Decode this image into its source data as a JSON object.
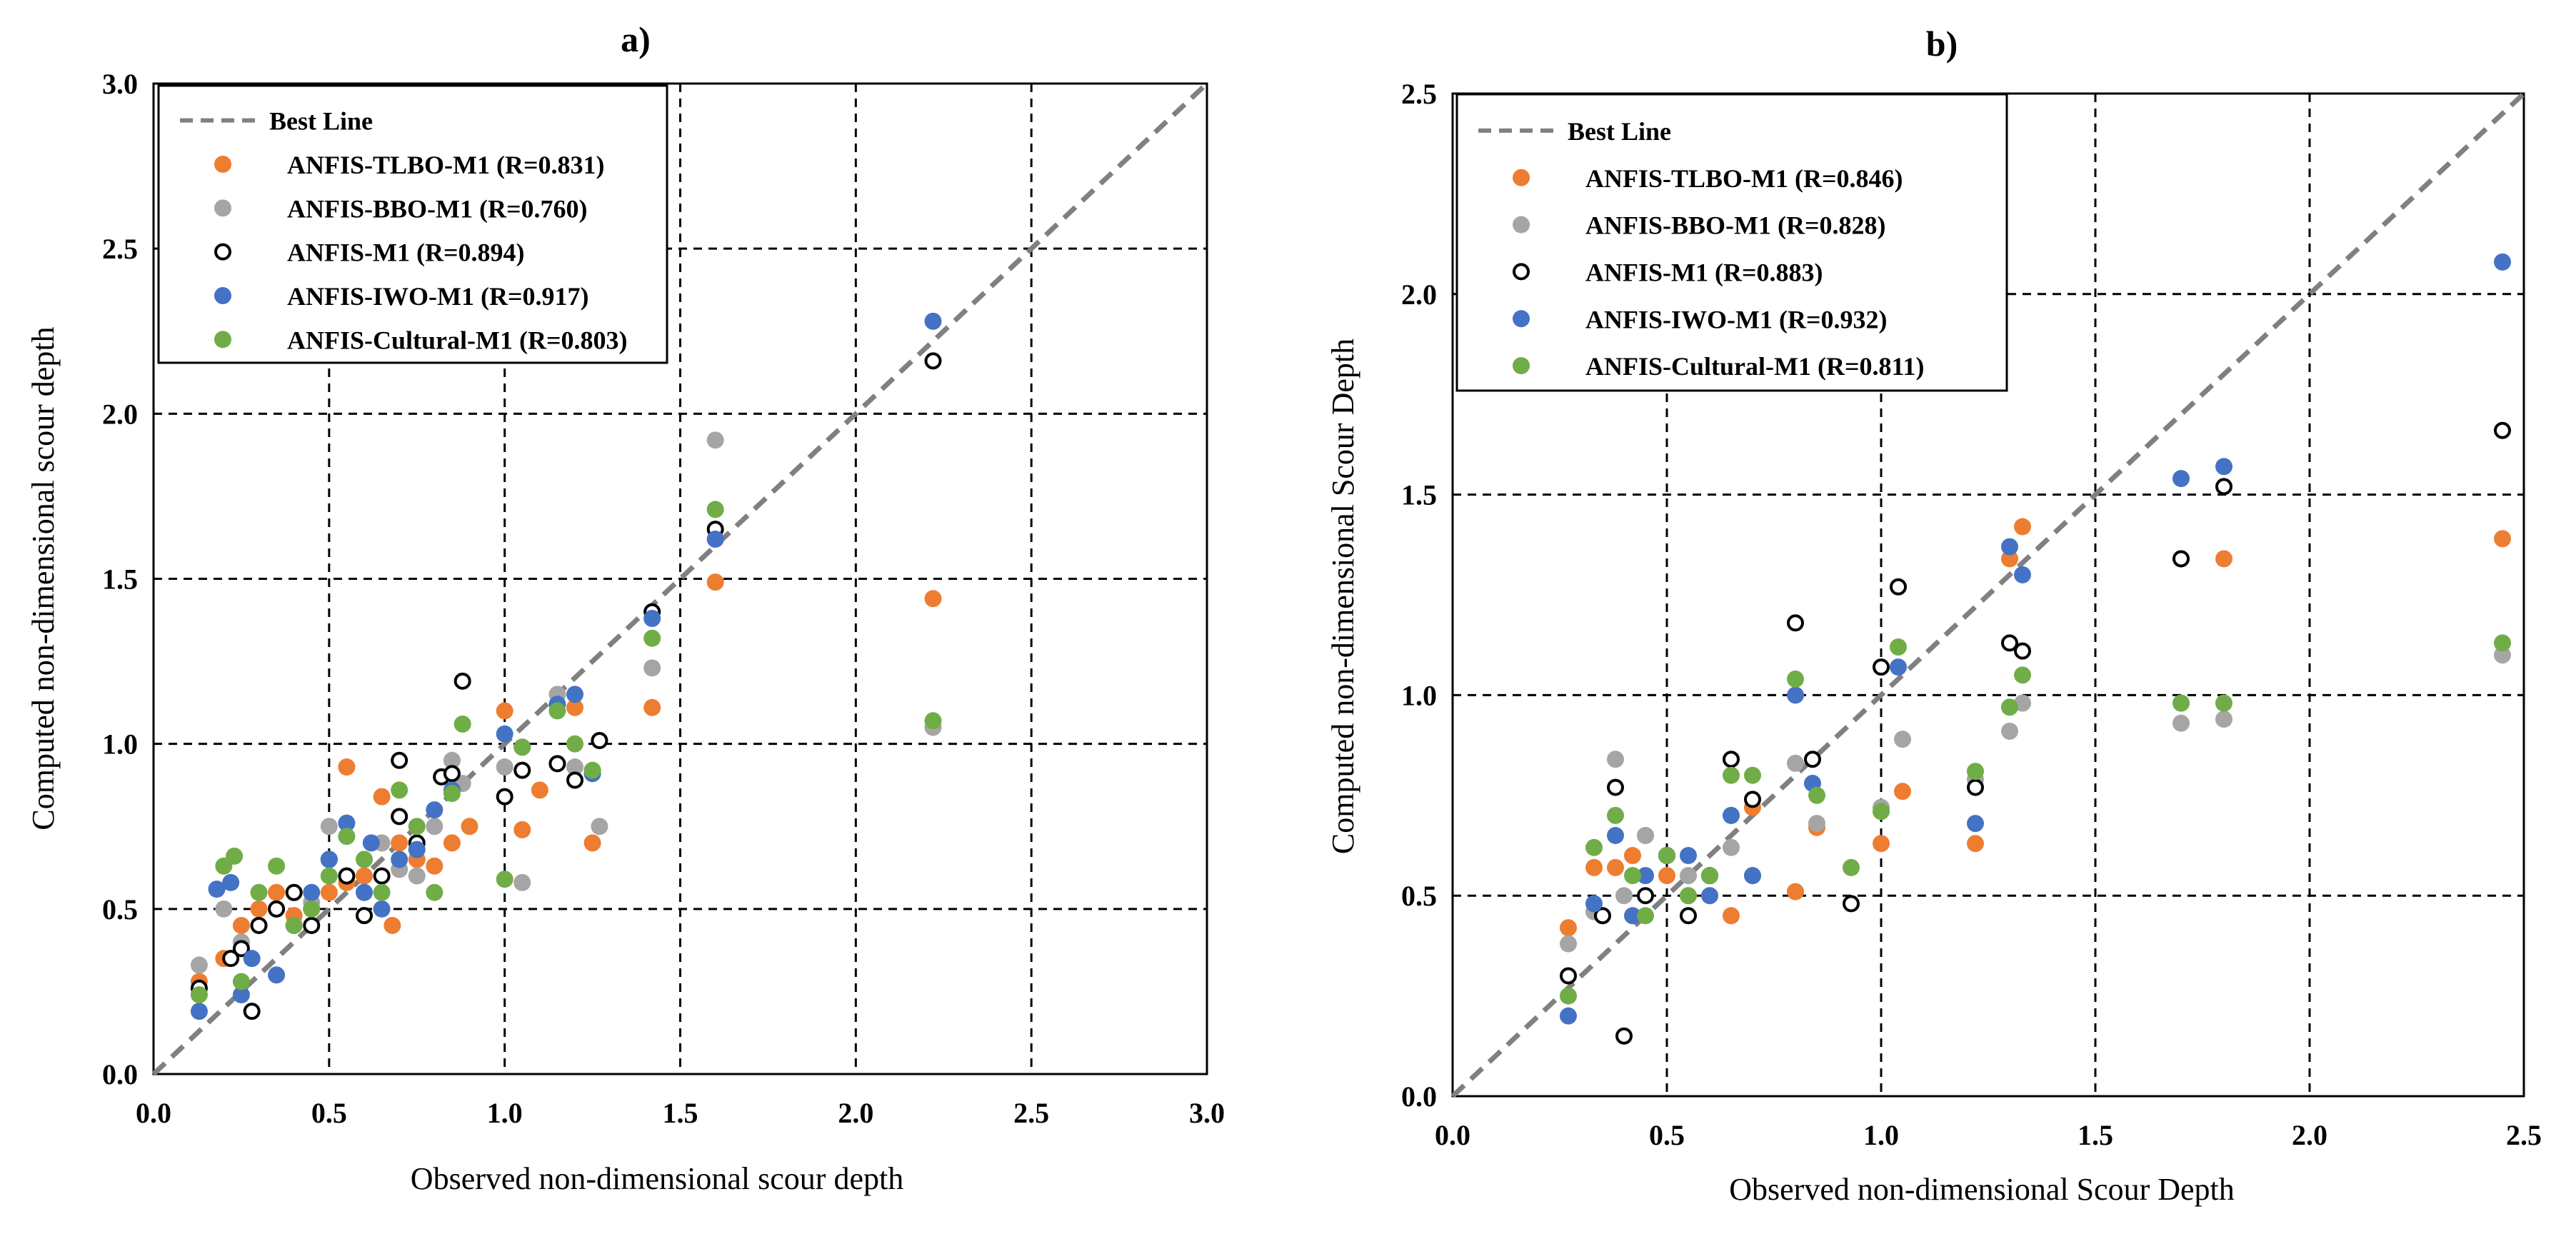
{
  "chart_data": [
    {
      "type": "scatter",
      "title": "a)",
      "xlabel": "Observed non-dimensional scour  depth",
      "ylabel": "Computed non-dimensional scour  depth",
      "xlim": [
        0,
        3
      ],
      "ylim": [
        0,
        3
      ],
      "xticks": [
        "0.0",
        "0.5",
        "1.0",
        "1.5",
        "2.0",
        "2.5",
        "3.0"
      ],
      "yticks": [
        "0.0",
        "0.5",
        "1.0",
        "1.5",
        "2.0",
        "2.5",
        "3.0"
      ],
      "grid": true,
      "legend_position": "top-left",
      "reference_line": {
        "name": "Best Line",
        "x": [
          0,
          3
        ],
        "y": [
          0,
          3
        ],
        "color": "#808080"
      },
      "series": [
        {
          "name": "ANFIS-TLBO-M1 (R=0.831)",
          "color": "#ED7D31",
          "marker": "filled",
          "x": [
            0.13,
            0.2,
            0.25,
            0.3,
            0.35,
            0.4,
            0.45,
            0.5,
            0.55,
            0.55,
            0.6,
            0.65,
            0.68,
            0.7,
            0.75,
            0.8,
            0.85,
            0.9,
            1.0,
            1.05,
            1.1,
            1.2,
            1.25,
            1.42,
            1.6,
            2.22
          ],
          "y": [
            0.28,
            0.35,
            0.45,
            0.5,
            0.55,
            0.48,
            0.5,
            0.55,
            0.93,
            0.58,
            0.6,
            0.84,
            0.45,
            0.7,
            0.65,
            0.63,
            0.7,
            0.75,
            1.1,
            0.74,
            0.86,
            1.11,
            0.7,
            1.11,
            1.49,
            1.44
          ]
        },
        {
          "name": "ANFIS-BBO-M1 (R=0.760)",
          "color": "#A5A5A5",
          "marker": "filled",
          "x": [
            0.13,
            0.2,
            0.25,
            0.3,
            0.35,
            0.4,
            0.45,
            0.5,
            0.55,
            0.6,
            0.65,
            0.7,
            0.75,
            0.8,
            0.85,
            0.88,
            1.0,
            1.05,
            1.15,
            1.2,
            1.27,
            1.42,
            1.6,
            2.22
          ],
          "y": [
            0.33,
            0.5,
            0.4,
            0.45,
            0.5,
            0.55,
            0.52,
            0.75,
            0.6,
            0.55,
            0.7,
            0.62,
            0.6,
            0.75,
            0.95,
            0.88,
            0.93,
            0.58,
            1.15,
            0.93,
            0.75,
            1.23,
            1.92,
            1.05
          ]
        },
        {
          "name": "ANFIS-M1 (R=0.894)",
          "color": "#000000",
          "marker": "hollow",
          "x": [
            0.13,
            0.22,
            0.25,
            0.28,
            0.3,
            0.35,
            0.4,
            0.45,
            0.5,
            0.55,
            0.6,
            0.65,
            0.7,
            0.7,
            0.75,
            0.82,
            0.85,
            0.88,
            1.0,
            1.05,
            1.15,
            1.2,
            1.27,
            1.42,
            1.6,
            2.22
          ],
          "y": [
            0.26,
            0.35,
            0.38,
            0.19,
            0.45,
            0.5,
            0.55,
            0.45,
            0.65,
            0.6,
            0.48,
            0.6,
            0.95,
            0.78,
            0.7,
            0.9,
            0.91,
            1.19,
            0.84,
            0.92,
            0.94,
            0.89,
            1.01,
            1.4,
            1.65,
            2.16
          ]
        },
        {
          "name": "ANFIS-IWO-M1 (R=0.917)",
          "color": "#4472C4",
          "marker": "filled",
          "x": [
            0.13,
            0.18,
            0.22,
            0.25,
            0.28,
            0.35,
            0.4,
            0.45,
            0.5,
            0.55,
            0.6,
            0.62,
            0.65,
            0.7,
            0.75,
            0.8,
            0.85,
            1.0,
            1.05,
            1.15,
            1.2,
            1.25,
            1.42,
            1.6,
            2.22
          ],
          "y": [
            0.19,
            0.56,
            0.58,
            0.24,
            0.35,
            0.3,
            0.45,
            0.55,
            0.65,
            0.76,
            0.55,
            0.7,
            0.5,
            0.65,
            0.68,
            0.8,
            0.86,
            1.03,
            0.99,
            1.12,
            1.15,
            0.91,
            1.38,
            1.62,
            2.28
          ]
        },
        {
          "name": "ANFIS-Cultural-M1 (R=0.803)",
          "color": "#70AD47",
          "marker": "filled",
          "x": [
            0.13,
            0.2,
            0.23,
            0.25,
            0.3,
            0.35,
            0.4,
            0.45,
            0.5,
            0.55,
            0.6,
            0.65,
            0.7,
            0.75,
            0.8,
            0.85,
            0.88,
            1.0,
            1.05,
            1.15,
            1.2,
            1.25,
            1.42,
            1.6,
            2.22
          ],
          "y": [
            0.24,
            0.63,
            0.66,
            0.28,
            0.55,
            0.63,
            0.45,
            0.5,
            0.6,
            0.72,
            0.65,
            0.55,
            0.86,
            0.75,
            0.55,
            0.85,
            1.06,
            0.59,
            0.99,
            1.1,
            1.0,
            0.92,
            1.32,
            1.71,
            1.07
          ]
        }
      ]
    },
    {
      "type": "scatter",
      "title": "b)",
      "xlabel": "Observed non-dimensional Scour Depth",
      "ylabel": "Computed non-dimensional Scour  Depth",
      "xlim": [
        0,
        2.5
      ],
      "ylim": [
        0,
        2.5
      ],
      "xticks": [
        "0.0",
        "0.5",
        "1.0",
        "1.5",
        "2.0",
        "2.5"
      ],
      "yticks": [
        "0.0",
        "0.5",
        "1.0",
        "1.5",
        "2.0",
        "2.5"
      ],
      "grid": true,
      "legend_position": "top-left",
      "reference_line": {
        "name": "Best Line",
        "x": [
          0,
          2.5
        ],
        "y": [
          0,
          2.5
        ],
        "color": "#808080"
      },
      "series": [
        {
          "name": "ANFIS-TLBO-M1 (R=0.846)",
          "color": "#ED7D31",
          "marker": "filled",
          "x": [
            0.27,
            0.33,
            0.38,
            0.42,
            0.45,
            0.5,
            0.55,
            0.6,
            0.65,
            0.7,
            0.8,
            0.85,
            1.0,
            1.05,
            1.22,
            1.3,
            1.33,
            1.7,
            1.8,
            2.45
          ],
          "y": [
            0.42,
            0.57,
            0.57,
            0.6,
            0.65,
            0.55,
            0.5,
            0.55,
            0.45,
            0.72,
            0.51,
            0.67,
            0.63,
            0.76,
            0.63,
            1.34,
            1.42,
            1.34,
            1.34,
            1.39
          ]
        },
        {
          "name": "ANFIS-BBO-M1 (R=0.828)",
          "color": "#A5A5A5",
          "marker": "filled",
          "x": [
            0.27,
            0.33,
            0.38,
            0.4,
            0.45,
            0.5,
            0.55,
            0.6,
            0.65,
            0.7,
            0.8,
            0.85,
            1.0,
            1.05,
            1.22,
            1.3,
            1.33,
            1.7,
            1.8,
            2.45
          ],
          "y": [
            0.38,
            0.46,
            0.84,
            0.5,
            0.65,
            0.6,
            0.55,
            0.5,
            0.62,
            0.55,
            0.83,
            0.68,
            0.72,
            0.89,
            0.79,
            0.91,
            0.98,
            0.93,
            0.94,
            1.1
          ]
        },
        {
          "name": "ANFIS-M1 (R=0.883)",
          "color": "#000000",
          "marker": "hollow",
          "x": [
            0.27,
            0.35,
            0.38,
            0.4,
            0.45,
            0.5,
            0.55,
            0.6,
            0.65,
            0.7,
            0.8,
            0.84,
            0.93,
            1.0,
            1.04,
            1.22,
            1.3,
            1.33,
            1.7,
            1.8,
            2.45
          ],
          "y": [
            0.3,
            0.45,
            0.77,
            0.15,
            0.5,
            0.6,
            0.45,
            0.55,
            0.84,
            0.74,
            1.18,
            0.84,
            0.48,
            1.07,
            1.27,
            0.77,
            1.13,
            1.11,
            1.34,
            1.52,
            1.66
          ]
        },
        {
          "name": "ANFIS-IWO-M1 (R=0.932)",
          "color": "#4472C4",
          "marker": "filled",
          "x": [
            0.27,
            0.33,
            0.38,
            0.42,
            0.45,
            0.5,
            0.55,
            0.6,
            0.65,
            0.7,
            0.8,
            0.84,
            1.04,
            1.22,
            1.3,
            1.33,
            1.7,
            1.8,
            2.45
          ],
          "y": [
            0.2,
            0.48,
            0.65,
            0.45,
            0.55,
            0.6,
            0.6,
            0.5,
            0.7,
            0.55,
            1.0,
            0.78,
            1.07,
            0.68,
            1.37,
            1.3,
            1.54,
            1.57,
            2.08
          ]
        },
        {
          "name": "ANFIS-Cultural-M1 (R=0.811)",
          "color": "#70AD47",
          "marker": "filled",
          "x": [
            0.27,
            0.33,
            0.38,
            0.42,
            0.45,
            0.5,
            0.55,
            0.6,
            0.65,
            0.7,
            0.8,
            0.85,
            0.93,
            1.0,
            1.04,
            1.22,
            1.3,
            1.33,
            1.7,
            1.8,
            2.45
          ],
          "y": [
            0.25,
            0.62,
            0.7,
            0.55,
            0.45,
            0.6,
            0.5,
            0.55,
            0.8,
            0.8,
            1.04,
            0.75,
            0.57,
            0.71,
            1.12,
            0.81,
            0.97,
            1.05,
            0.98,
            0.98,
            1.13
          ]
        }
      ]
    }
  ]
}
